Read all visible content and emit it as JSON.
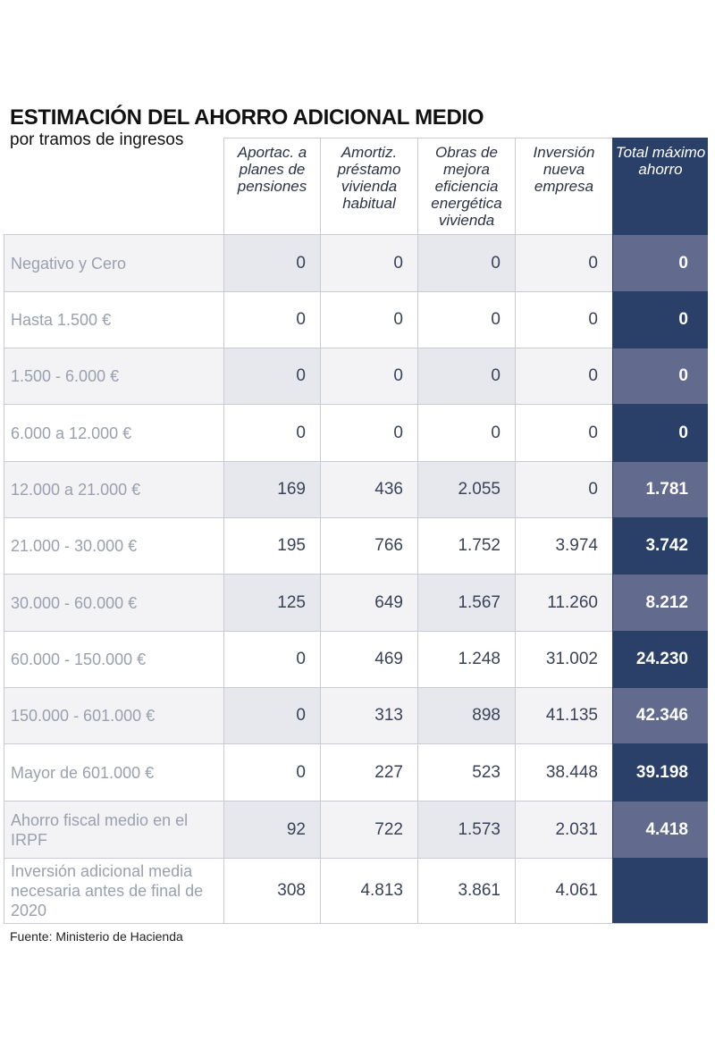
{
  "title": "ESTIMACIÓN DEL AHORRO ADICIONAL MEDIO",
  "subtitle": "por tramos de ingresos",
  "source": "Fuente: Ministerio de Hacienda",
  "columns": [
    "Aportac. a planes de pensiones",
    "Amortiz. préstamo vivienda habitual",
    "Obras de mejora eficiencia energética vivienda",
    "Inversión nueva empresa",
    "Total máximo ahorro"
  ],
  "rows": [
    {
      "label": "Negativo y Cero",
      "values": [
        "0",
        "0",
        "0",
        "0",
        "0"
      ]
    },
    {
      "label": "Hasta 1.500 €",
      "values": [
        "0",
        "0",
        "0",
        "0",
        "0"
      ]
    },
    {
      "label": "1.500 - 6.000 €",
      "values": [
        "0",
        "0",
        "0",
        "0",
        "0"
      ]
    },
    {
      "label": "6.000 a 12.000 €",
      "values": [
        "0",
        "0",
        "0",
        "0",
        "0"
      ]
    },
    {
      "label": "12.000 a 21.000 €",
      "values": [
        "169",
        "436",
        "2.055",
        "0",
        "1.781"
      ]
    },
    {
      "label": "21.000 - 30.000 €",
      "values": [
        "195",
        "766",
        "1.752",
        "3.974",
        "3.742"
      ]
    },
    {
      "label": "30.000 - 60.000 €",
      "values": [
        "125",
        "649",
        "1.567",
        "11.260",
        "8.212"
      ]
    },
    {
      "label": "60.000 - 150.000 €",
      "values": [
        "0",
        "469",
        "1.248",
        "31.002",
        "24.230"
      ]
    },
    {
      "label": "150.000 - 601.000 €",
      "values": [
        "0",
        "313",
        "898",
        "41.135",
        "42.346"
      ]
    },
    {
      "label": "Mayor de 601.000 €",
      "values": [
        "0",
        "227",
        "523",
        "38.448",
        "39.198"
      ]
    },
    {
      "label": "Ahorro fiscal medio en el IRPF",
      "values": [
        "92",
        "722",
        "1.573",
        "2.031",
        "4.418"
      ]
    },
    {
      "label": "Inversión adicional media necesaria antes de final de 2020",
      "values": [
        "308",
        "4.813",
        "3.861",
        "4.061",
        ""
      ]
    }
  ]
}
